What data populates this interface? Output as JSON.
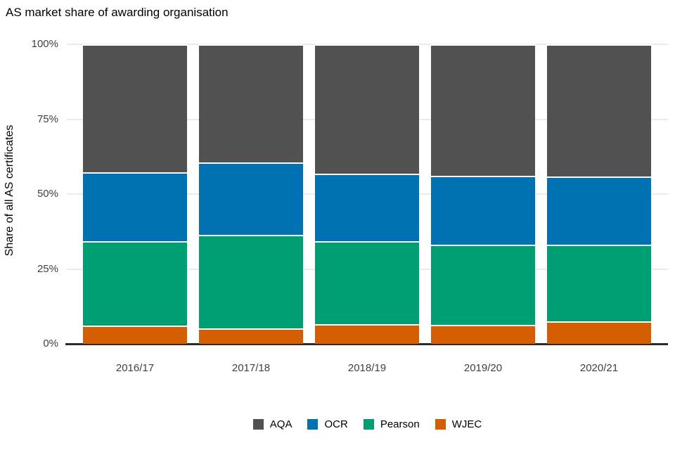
{
  "chart_data": {
    "type": "bar",
    "stacked": true,
    "title": "AS market share of awarding organisation",
    "xlabel": "",
    "ylabel": "Share of all AS certificates",
    "categories": [
      "2016/17",
      "2017/18",
      "2018/19",
      "2019/20",
      "2020/21"
    ],
    "series": [
      {
        "name": "AQA",
        "color": "#515151",
        "values": [
          42.7,
          39.4,
          43.2,
          43.9,
          44.1
        ]
      },
      {
        "name": "OCR",
        "color": "#0072B2",
        "values": [
          23.0,
          24.2,
          22.6,
          23.0,
          22.8
        ]
      },
      {
        "name": "Pearson",
        "color": "#009E73",
        "values": [
          28.1,
          31.2,
          27.6,
          26.8,
          25.5
        ]
      },
      {
        "name": "WJEC",
        "color": "#D55E00",
        "values": [
          6.2,
          5.2,
          6.6,
          6.3,
          7.6
        ]
      }
    ],
    "stack_order_bottom_to_top": [
      "WJEC",
      "Pearson",
      "OCR",
      "AQA"
    ],
    "ylim": [
      0,
      100
    ],
    "y_ticks": [
      {
        "value": 0,
        "label": "0%"
      },
      {
        "value": 25,
        "label": "25%"
      },
      {
        "value": 50,
        "label": "50%"
      },
      {
        "value": 75,
        "label": "75%"
      },
      {
        "value": 100,
        "label": "100%"
      }
    ],
    "grid": true,
    "gridline_color": "#EBEBEB",
    "axis_line_color": "#2B2B2B",
    "tick_label_color": "#404040",
    "legend_position": "bottom",
    "legend_order": [
      "AQA",
      "OCR",
      "Pearson",
      "WJEC"
    ]
  }
}
